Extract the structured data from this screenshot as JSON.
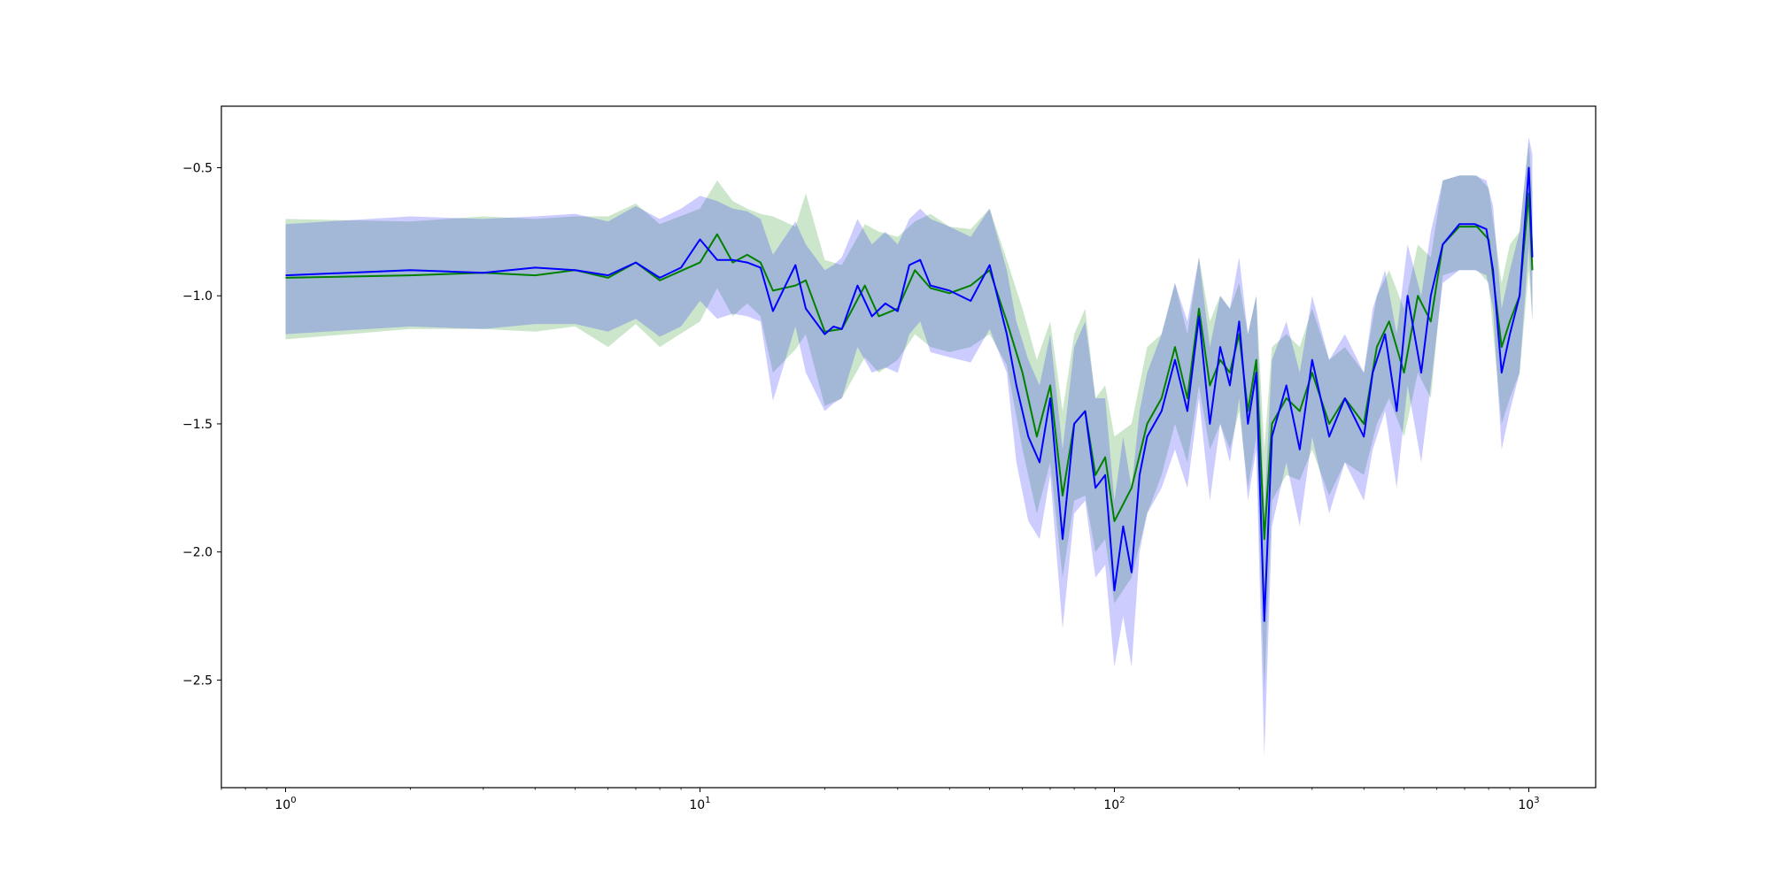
{
  "chart_data": {
    "type": "line",
    "title": "",
    "xlabel": "",
    "ylabel": "",
    "xscale": "log",
    "xlim": [
      0.7,
      1450
    ],
    "ylim": [
      -2.92,
      -0.26
    ],
    "grid": false,
    "x_ticks": [
      {
        "base": "10",
        "exp": "0",
        "value": 1
      },
      {
        "base": "10",
        "exp": "1",
        "value": 10
      },
      {
        "base": "10",
        "exp": "2",
        "value": 100
      },
      {
        "base": "10",
        "exp": "3",
        "value": 1000
      }
    ],
    "y_ticks": [
      {
        "label": "−0.5",
        "value": -0.5
      },
      {
        "label": "−1.0",
        "value": -1.0
      },
      {
        "label": "−1.5",
        "value": -1.5
      },
      {
        "label": "−2.0",
        "value": -2.0
      },
      {
        "label": "−2.5",
        "value": -2.5
      }
    ],
    "series": [
      {
        "color": "#008000",
        "band_color": "#008000",
        "band_opacity": 0.2,
        "points": [
          [
            1,
            -0.93,
            -0.7,
            -1.17
          ],
          [
            2,
            -0.92,
            -0.71,
            -1.13
          ],
          [
            3,
            -0.91,
            -0.69,
            -1.13
          ],
          [
            4,
            -0.92,
            -0.7,
            -1.14
          ],
          [
            5,
            -0.9,
            -0.69,
            -1.12
          ],
          [
            6,
            -0.93,
            -0.69,
            -1.2
          ],
          [
            7,
            -0.87,
            -0.64,
            -1.11
          ],
          [
            8,
            -0.94,
            -0.72,
            -1.2
          ],
          [
            10,
            -0.87,
            -0.66,
            -1.1
          ],
          [
            11,
            -0.76,
            -0.55,
            -0.97
          ],
          [
            12,
            -0.87,
            -0.63,
            -1.08
          ],
          [
            13,
            -0.84,
            -0.66,
            -1.03
          ],
          [
            14,
            -0.87,
            -0.68,
            -1.08
          ],
          [
            15,
            -0.98,
            -0.69,
            -1.3
          ],
          [
            17,
            -0.96,
            -0.73,
            -1.21
          ],
          [
            18,
            -0.94,
            -0.6,
            -1.15
          ],
          [
            20,
            -1.14,
            -0.86,
            -1.43
          ],
          [
            22,
            -1.13,
            -0.88,
            -1.4
          ],
          [
            25,
            -0.96,
            -0.72,
            -1.24
          ],
          [
            27,
            -1.08,
            -0.75,
            -1.3
          ],
          [
            30,
            -1.05,
            -0.77,
            -1.25
          ],
          [
            33,
            -0.9,
            -0.71,
            -1.15
          ],
          [
            36,
            -0.97,
            -0.68,
            -1.2
          ],
          [
            40,
            -0.99,
            -0.73,
            -1.22
          ],
          [
            45,
            -0.96,
            -0.74,
            -1.2
          ],
          [
            50,
            -0.9,
            -0.66,
            -1.15
          ],
          [
            55,
            -1.1,
            -0.86,
            -1.27
          ],
          [
            60,
            -1.3,
            -1.05,
            -1.6
          ],
          [
            65,
            -1.55,
            -1.25,
            -1.85
          ],
          [
            70,
            -1.35,
            -1.1,
            -1.65
          ],
          [
            75,
            -1.78,
            -1.45,
            -2.1
          ],
          [
            80,
            -1.5,
            -1.15,
            -1.8
          ],
          [
            85,
            -1.45,
            -1.05,
            -1.78
          ],
          [
            90,
            -1.7,
            -1.4,
            -2.0
          ],
          [
            95,
            -1.63,
            -1.35,
            -1.95
          ],
          [
            100,
            -1.88,
            -1.55,
            -2.2
          ],
          [
            110,
            -1.75,
            -1.5,
            -2.1
          ],
          [
            120,
            -1.5,
            -1.2,
            -1.85
          ],
          [
            130,
            -1.4,
            -1.15,
            -1.7
          ],
          [
            140,
            -1.2,
            -0.95,
            -1.5
          ],
          [
            150,
            -1.4,
            -1.15,
            -1.65
          ],
          [
            160,
            -1.05,
            -0.85,
            -1.35
          ],
          [
            170,
            -1.35,
            -1.1,
            -1.6
          ],
          [
            180,
            -1.25,
            -1.0,
            -1.5
          ],
          [
            190,
            -1.3,
            -1.05,
            -1.6
          ],
          [
            200,
            -1.15,
            -0.95,
            -1.45
          ],
          [
            210,
            -1.45,
            -1.15,
            -1.75
          ],
          [
            220,
            -1.25,
            -1.0,
            -1.55
          ],
          [
            230,
            -1.95,
            -1.6,
            -2.55
          ],
          [
            240,
            -1.5,
            -1.2,
            -1.8
          ],
          [
            260,
            -1.4,
            -1.15,
            -1.7
          ],
          [
            280,
            -1.45,
            -1.2,
            -1.72
          ],
          [
            300,
            -1.3,
            -1.05,
            -1.6
          ],
          [
            330,
            -1.5,
            -1.25,
            -1.78
          ],
          [
            360,
            -1.4,
            -1.2,
            -1.65
          ],
          [
            400,
            -1.5,
            -1.3,
            -1.7
          ],
          [
            430,
            -1.2,
            -1.0,
            -1.5
          ],
          [
            460,
            -1.1,
            -0.9,
            -1.4
          ],
          [
            500,
            -1.3,
            -1.05,
            -1.55
          ],
          [
            540,
            -1.0,
            -0.8,
            -1.3
          ],
          [
            580,
            -1.1,
            -0.85,
            -1.4
          ],
          [
            620,
            -0.8,
            -0.55,
            -0.92
          ],
          [
            680,
            -0.73,
            -0.53,
            -0.9
          ],
          [
            750,
            -0.73,
            -0.53,
            -0.9
          ],
          [
            800,
            -0.78,
            -0.58,
            -0.95
          ],
          [
            860,
            -1.2,
            -0.95,
            -1.5
          ],
          [
            900,
            -1.1,
            -0.8,
            -1.4
          ],
          [
            950,
            -1.0,
            -0.75,
            -1.3
          ],
          [
            1000,
            -0.6,
            -0.4,
            -0.9
          ],
          [
            1020,
            -0.9,
            -0.6,
            -1.1
          ]
        ]
      },
      {
        "color": "#0000ff",
        "band_color": "#0000ff",
        "band_opacity": 0.2,
        "points": [
          [
            1,
            -0.92,
            -0.72,
            -1.15
          ],
          [
            2,
            -0.9,
            -0.69,
            -1.12
          ],
          [
            3,
            -0.91,
            -0.7,
            -1.13
          ],
          [
            4,
            -0.89,
            -0.69,
            -1.11
          ],
          [
            5,
            -0.9,
            -0.68,
            -1.11
          ],
          [
            6,
            -0.92,
            -0.71,
            -1.14
          ],
          [
            7,
            -0.87,
            -0.65,
            -1.09
          ],
          [
            8,
            -0.93,
            -0.7,
            -1.16
          ],
          [
            9,
            -0.89,
            -0.66,
            -1.12
          ],
          [
            10,
            -0.78,
            -0.61,
            -1.02
          ],
          [
            11,
            -0.86,
            -0.63,
            -1.09
          ],
          [
            12,
            -0.86,
            -0.66,
            -1.07
          ],
          [
            13,
            -0.87,
            -0.67,
            -1.08
          ],
          [
            14,
            -0.89,
            -0.7,
            -1.1
          ],
          [
            15,
            -1.06,
            -0.84,
            -1.41
          ],
          [
            17,
            -0.88,
            -0.71,
            -1.12
          ],
          [
            18,
            -1.05,
            -0.8,
            -1.3
          ],
          [
            20,
            -1.15,
            -0.9,
            -1.45
          ],
          [
            21,
            -1.12,
            -0.88,
            -1.42
          ],
          [
            22,
            -1.13,
            -0.85,
            -1.4
          ],
          [
            24,
            -0.96,
            -0.7,
            -1.2
          ],
          [
            26,
            -1.08,
            -0.8,
            -1.3
          ],
          [
            28,
            -1.03,
            -0.75,
            -1.28
          ],
          [
            30,
            -1.06,
            -0.8,
            -1.3
          ],
          [
            32,
            -0.88,
            -0.7,
            -1.15
          ],
          [
            34,
            -0.86,
            -0.66,
            -1.1
          ],
          [
            36,
            -0.96,
            -0.7,
            -1.22
          ],
          [
            40,
            -0.98,
            -0.73,
            -1.24
          ],
          [
            45,
            -1.02,
            -0.77,
            -1.26
          ],
          [
            50,
            -0.88,
            -0.66,
            -1.13
          ],
          [
            55,
            -1.15,
            -0.9,
            -1.3
          ],
          [
            58,
            -1.35,
            -1.1,
            -1.65
          ],
          [
            62,
            -1.55,
            -1.25,
            -1.88
          ],
          [
            66,
            -1.65,
            -1.35,
            -1.95
          ],
          [
            70,
            -1.4,
            -1.15,
            -1.7
          ],
          [
            75,
            -1.95,
            -1.6,
            -2.3
          ],
          [
            80,
            -1.5,
            -1.2,
            -1.85
          ],
          [
            85,
            -1.45,
            -1.1,
            -1.8
          ],
          [
            90,
            -1.75,
            -1.4,
            -2.1
          ],
          [
            95,
            -1.7,
            -1.4,
            -2.05
          ],
          [
            100,
            -2.15,
            -1.8,
            -2.45
          ],
          [
            105,
            -1.9,
            -1.55,
            -2.25
          ],
          [
            110,
            -2.08,
            -1.75,
            -2.45
          ],
          [
            115,
            -1.7,
            -1.45,
            -2.0
          ],
          [
            120,
            -1.55,
            -1.3,
            -1.85
          ],
          [
            130,
            -1.45,
            -1.15,
            -1.75
          ],
          [
            140,
            -1.25,
            -0.95,
            -1.6
          ],
          [
            150,
            -1.45,
            -1.1,
            -1.75
          ],
          [
            160,
            -1.08,
            -0.85,
            -1.4
          ],
          [
            170,
            -1.5,
            -1.2,
            -1.8
          ],
          [
            180,
            -1.2,
            -1.0,
            -1.5
          ],
          [
            190,
            -1.35,
            -1.05,
            -1.65
          ],
          [
            200,
            -1.1,
            -0.85,
            -1.4
          ],
          [
            210,
            -1.5,
            -1.15,
            -1.8
          ],
          [
            220,
            -1.3,
            -1.0,
            -1.6
          ],
          [
            230,
            -2.27,
            -1.85,
            -2.8
          ],
          [
            240,
            -1.55,
            -1.25,
            -1.9
          ],
          [
            260,
            -1.35,
            -1.1,
            -1.65
          ],
          [
            280,
            -1.6,
            -1.3,
            -1.9
          ],
          [
            300,
            -1.25,
            -1.0,
            -1.55
          ],
          [
            330,
            -1.55,
            -1.25,
            -1.85
          ],
          [
            360,
            -1.4,
            -1.15,
            -1.65
          ],
          [
            400,
            -1.55,
            -1.3,
            -1.8
          ],
          [
            420,
            -1.3,
            -1.05,
            -1.6
          ],
          [
            450,
            -1.15,
            -0.9,
            -1.45
          ],
          [
            480,
            -1.45,
            -1.15,
            -1.75
          ],
          [
            510,
            -1.0,
            -0.8,
            -1.35
          ],
          [
            550,
            -1.3,
            -1.0,
            -1.65
          ],
          [
            580,
            -1.0,
            -0.75,
            -1.35
          ],
          [
            620,
            -0.8,
            -0.55,
            -0.95
          ],
          [
            680,
            -0.72,
            -0.53,
            -0.9
          ],
          [
            740,
            -0.72,
            -0.53,
            -0.9
          ],
          [
            790,
            -0.74,
            -0.55,
            -0.92
          ],
          [
            820,
            -0.9,
            -0.65,
            -1.05
          ],
          [
            860,
            -1.3,
            -1.05,
            -1.6
          ],
          [
            900,
            -1.15,
            -0.9,
            -1.45
          ],
          [
            950,
            -1.0,
            -0.75,
            -1.3
          ],
          [
            1000,
            -0.5,
            -0.38,
            -0.8
          ],
          [
            1020,
            -0.85,
            -0.45,
            -1.1
          ]
        ]
      }
    ]
  }
}
